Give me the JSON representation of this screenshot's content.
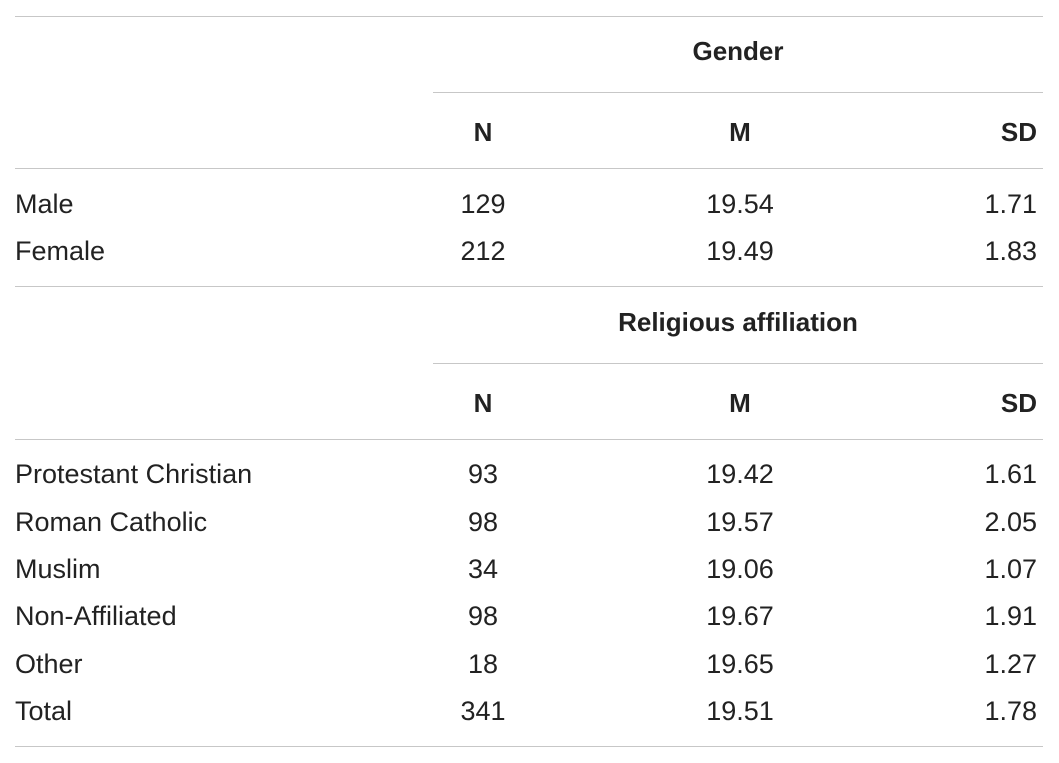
{
  "sections": [
    {
      "title": "Gender",
      "columns": [
        "N",
        "M",
        "SD"
      ],
      "rows": [
        {
          "label": "Male",
          "n": "129",
          "m": "19.54",
          "sd": "1.71"
        },
        {
          "label": "Female",
          "n": "212",
          "m": "19.49",
          "sd": "1.83"
        }
      ]
    },
    {
      "title": "Religious affiliation",
      "columns": [
        "N",
        "M",
        "SD"
      ],
      "rows": [
        {
          "label": "Protestant Christian",
          "n": "93",
          "m": "19.42",
          "sd": "1.61"
        },
        {
          "label": "Roman Catholic",
          "n": "98",
          "m": "19.57",
          "sd": "2.05"
        },
        {
          "label": "Muslim",
          "n": "34",
          "m": "19.06",
          "sd": "1.07"
        },
        {
          "label": "Non-Affiliated",
          "n": "98",
          "m": "19.67",
          "sd": "1.91"
        },
        {
          "label": "Other",
          "n": "18",
          "m": "19.65",
          "sd": "1.27"
        },
        {
          "label": "Total",
          "n": "341",
          "m": "19.51",
          "sd": "1.78"
        }
      ]
    }
  ]
}
